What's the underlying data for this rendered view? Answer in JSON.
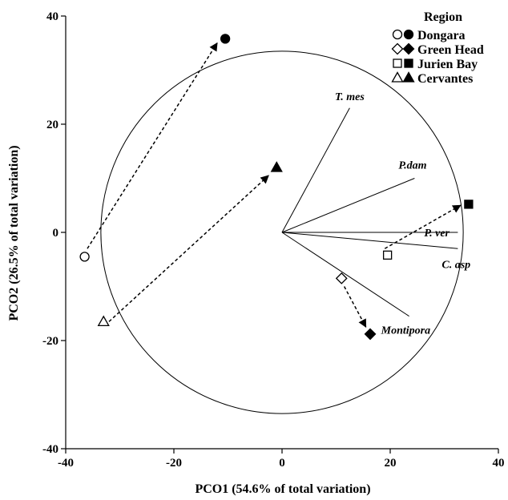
{
  "chart_data": {
    "type": "scatter",
    "xlabel": "PCO1 (54.6% of total variation)",
    "ylabel": "PCO2 (26.5% of total variation)",
    "xlim": [
      -40,
      40
    ],
    "ylim": [
      -40,
      40
    ],
    "xticks": [
      -40,
      -20,
      0,
      20,
      40
    ],
    "yticks": [
      -40,
      -20,
      0,
      20,
      40
    ],
    "xtick_labels": [
      "-40",
      "-20",
      "0",
      "20",
      "40"
    ],
    "ytick_labels": [
      "-40",
      "-20",
      "0",
      "20",
      "40"
    ],
    "circle": {
      "center": [
        0,
        0
      ],
      "radius": 33.5
    },
    "legend": {
      "title": "Region",
      "position": "top-right",
      "entries": [
        {
          "label": "Dongara",
          "shape": "circle"
        },
        {
          "label": "Green Head",
          "shape": "diamond"
        },
        {
          "label": "Jurien Bay",
          "shape": "square"
        },
        {
          "label": "Cervantes",
          "shape": "triangle"
        }
      ]
    },
    "series": [
      {
        "name": "Dongara",
        "shape": "circle",
        "open": [
          -36.5,
          -4.5
        ],
        "filled": [
          -10.5,
          35.8
        ]
      },
      {
        "name": "Green Head",
        "shape": "diamond",
        "open": [
          11,
          -8.5
        ],
        "filled": [
          16.3,
          -18.8
        ]
      },
      {
        "name": "Jurien Bay",
        "shape": "square",
        "open": [
          19.5,
          -4.2
        ],
        "filled": [
          34.5,
          5.2
        ]
      },
      {
        "name": "Cervantes",
        "shape": "triangle",
        "open": [
          -33,
          -16.5
        ],
        "filled": [
          -1,
          12
        ]
      }
    ],
    "arrows": [
      {
        "from": [
          -36,
          -3
        ],
        "to": [
          -12,
          35
        ]
      },
      {
        "from": [
          -32,
          -16.5
        ],
        "to": [
          -2.5,
          10.5
        ]
      },
      {
        "from": [
          11.5,
          -10
        ],
        "to": [
          15.5,
          -17.5
        ]
      },
      {
        "from": [
          19,
          -3
        ],
        "to": [
          33,
          5
        ]
      }
    ],
    "vectors": [
      {
        "label": "T. mes",
        "end": [
          12.5,
          23
        ]
      },
      {
        "label": "P.dam",
        "end": [
          24.5,
          10
        ]
      },
      {
        "label": "P. ver",
        "end": [
          32.5,
          0
        ]
      },
      {
        "label": "C. asp",
        "end": [
          32.5,
          -3
        ]
      },
      {
        "label": "Montipora",
        "end": [
          23.5,
          -15.5
        ]
      }
    ]
  }
}
